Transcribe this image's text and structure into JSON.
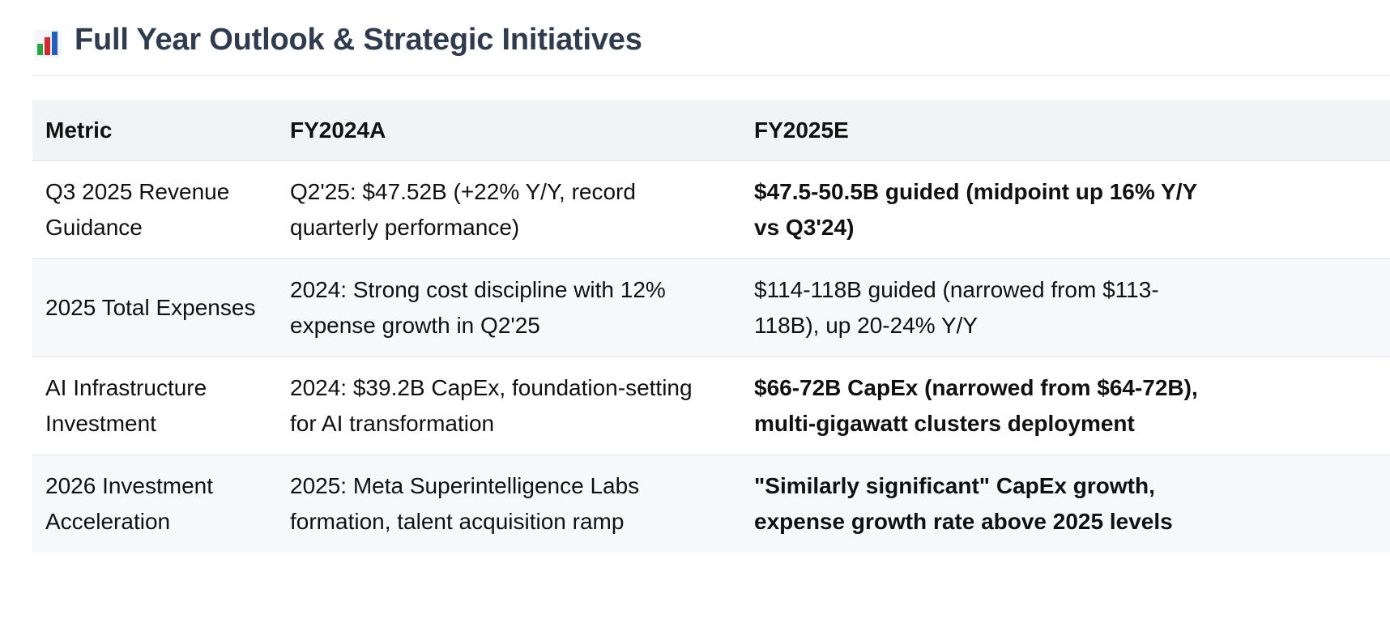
{
  "title": {
    "icon": "bar-chart-icon",
    "text": "Full Year Outlook & Strategic Initiatives"
  },
  "table": {
    "headers": [
      "Metric",
      "FY2024A",
      "FY2025E"
    ],
    "rows": [
      {
        "metric": "Q3 2025 Revenue\nGuidance",
        "fy2024a": "Q2'25: $47.52B (+22% Y/Y, record\nquarterly performance)",
        "fy2025e": "$47.5-50.5B guided (midpoint up 16% Y/Y\nvs Q3'24)",
        "fy2025e_bold": true
      },
      {
        "metric": "2025 Total Expenses",
        "fy2024a": "2024: Strong cost discipline with 12%\nexpense growth in Q2'25",
        "fy2025e": "$114-118B guided (narrowed from $113-\n118B), up 20-24% Y/Y",
        "fy2025e_bold": false
      },
      {
        "metric": "AI Infrastructure\nInvestment",
        "fy2024a": "2024: $39.2B CapEx, foundation-setting\nfor AI transformation",
        "fy2025e": "$66-72B CapEx (narrowed from $64-72B),\nmulti-gigawatt clusters deployment",
        "fy2025e_bold": true
      },
      {
        "metric": "2026 Investment\nAcceleration",
        "fy2024a": "2025: Meta Superintelligence Labs\nformation, talent acquisition ramp",
        "fy2025e": "\"Similarly significant\" CapEx growth,\nexpense growth rate above 2025 levels",
        "fy2025e_bold": true
      }
    ]
  }
}
